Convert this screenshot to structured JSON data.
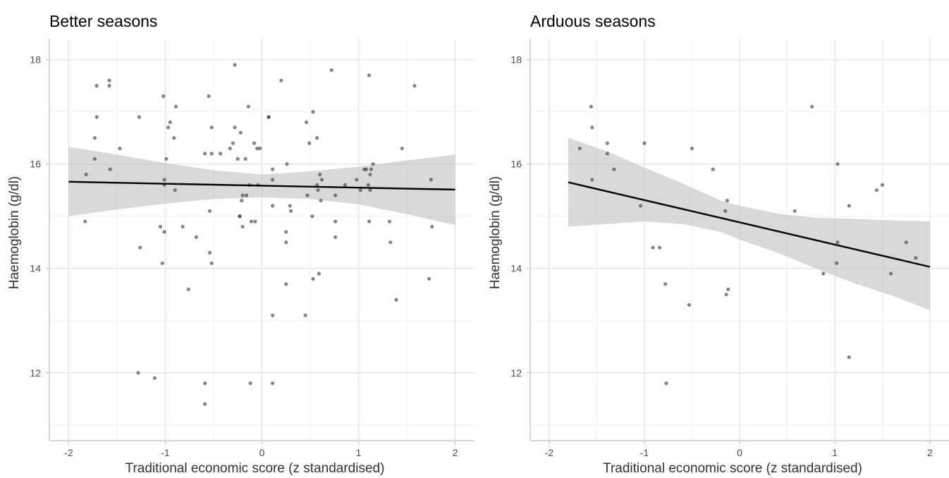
{
  "chart_data": [
    {
      "type": "scatter",
      "title": "Better seasons",
      "xlabel": "Traditional economic score (z standardised)",
      "ylabel": "Haemoglobin (g/dl)",
      "xlim": [
        -2.2,
        2.2
      ],
      "ylim": [
        10.7,
        18.4
      ],
      "x_ticks": [
        -2,
        -1,
        0,
        1,
        2
      ],
      "y_ticks": [
        12,
        14,
        16,
        18
      ],
      "grid": true,
      "colors": {
        "points": "#333333",
        "fit_line": "#000000",
        "ribbon": "#bfbfbf"
      },
      "points": [
        [
          -1.83,
          14.9
        ],
        [
          -1.82,
          15.8
        ],
        [
          -1.73,
          16.1
        ],
        [
          -1.73,
          16.5
        ],
        [
          -1.71,
          16.9
        ],
        [
          -1.71,
          17.5
        ],
        [
          -1.58,
          17.6
        ],
        [
          -1.58,
          17.5
        ],
        [
          -1.57,
          15.9
        ],
        [
          -1.47,
          16.3
        ],
        [
          -1.28,
          12.0
        ],
        [
          -1.27,
          16.9
        ],
        [
          -1.26,
          14.4
        ],
        [
          -1.11,
          11.9
        ],
        [
          -1.05,
          14.8
        ],
        [
          -1.03,
          14.1
        ],
        [
          -1.02,
          17.3
        ],
        [
          -1.01,
          15.7
        ],
        [
          -1.01,
          15.6
        ],
        [
          -1.01,
          14.7
        ],
        [
          -0.99,
          16.1
        ],
        [
          -0.97,
          16.7
        ],
        [
          -0.95,
          16.8
        ],
        [
          -0.91,
          16.5
        ],
        [
          -0.9,
          15.5
        ],
        [
          -0.89,
          17.1
        ],
        [
          -0.82,
          14.8
        ],
        [
          -0.76,
          13.6
        ],
        [
          -0.68,
          14.6
        ],
        [
          -0.59,
          11.8
        ],
        [
          -0.59,
          11.4
        ],
        [
          -0.59,
          16.2
        ],
        [
          -0.55,
          17.3
        ],
        [
          -0.54,
          15.1
        ],
        [
          -0.54,
          14.3
        ],
        [
          -0.52,
          14.1
        ],
        [
          -0.52,
          16.7
        ],
        [
          -0.52,
          16.2
        ],
        [
          -0.43,
          16.2
        ],
        [
          -0.33,
          16.3
        ],
        [
          -0.3,
          16.4
        ],
        [
          -0.28,
          17.9
        ],
        [
          -0.28,
          16.7
        ],
        [
          -0.25,
          16.1
        ],
        [
          -0.23,
          15.0
        ],
        [
          -0.23,
          15.0
        ],
        [
          -0.22,
          16.6
        ],
        [
          -0.21,
          15.3
        ],
        [
          -0.2,
          15.4
        ],
        [
          -0.2,
          14.8
        ],
        [
          -0.17,
          16.1
        ],
        [
          -0.16,
          15.4
        ],
        [
          -0.14,
          17.1
        ],
        [
          -0.13,
          15.6
        ],
        [
          -0.12,
          11.8
        ],
        [
          -0.11,
          14.9
        ],
        [
          -0.08,
          16.4
        ],
        [
          -0.07,
          14.9
        ],
        [
          -0.05,
          16.3
        ],
        [
          -0.04,
          15.6
        ],
        [
          -0.02,
          16.3
        ],
        [
          0.07,
          16.9
        ],
        [
          0.07,
          16.9
        ],
        [
          0.11,
          15.9
        ],
        [
          0.11,
          15.7
        ],
        [
          0.11,
          15.2
        ],
        [
          0.11,
          13.1
        ],
        [
          0.11,
          11.8
        ],
        [
          0.2,
          17.6
        ],
        [
          0.25,
          14.7
        ],
        [
          0.25,
          14.5
        ],
        [
          0.25,
          13.7
        ],
        [
          0.26,
          16.0
        ],
        [
          0.29,
          15.2
        ],
        [
          0.3,
          15.1
        ],
        [
          0.45,
          13.1
        ],
        [
          0.46,
          16.8
        ],
        [
          0.47,
          15.4
        ],
        [
          0.49,
          16.4
        ],
        [
          0.52,
          15.0
        ],
        [
          0.53,
          13.8
        ],
        [
          0.53,
          17.0
        ],
        [
          0.57,
          15.6
        ],
        [
          0.57,
          16.5
        ],
        [
          0.58,
          15.5
        ],
        [
          0.59,
          13.9
        ],
        [
          0.6,
          15.8
        ],
        [
          0.61,
          15.3
        ],
        [
          0.62,
          15.7
        ],
        [
          0.72,
          17.8
        ],
        [
          0.76,
          15.4
        ],
        [
          0.76,
          14.9
        ],
        [
          0.76,
          14.6
        ],
        [
          0.86,
          15.6
        ],
        [
          0.98,
          15.7
        ],
        [
          1.02,
          15.5
        ],
        [
          1.06,
          15.9
        ],
        [
          1.08,
          15.9
        ],
        [
          1.1,
          15.6
        ],
        [
          1.11,
          17.7
        ],
        [
          1.11,
          14.9
        ],
        [
          1.12,
          15.8
        ],
        [
          1.12,
          15.5
        ],
        [
          1.13,
          15.9
        ],
        [
          1.15,
          16.0
        ],
        [
          1.32,
          14.9
        ],
        [
          1.33,
          14.5
        ],
        [
          1.39,
          13.4
        ],
        [
          1.45,
          16.3
        ],
        [
          1.58,
          17.5
        ],
        [
          1.73,
          13.8
        ],
        [
          1.75,
          15.7
        ],
        [
          1.76,
          14.8
        ]
      ],
      "fit": {
        "x": [
          -2,
          2
        ],
        "y": [
          15.66,
          15.51
        ]
      },
      "ci_band": {
        "x": [
          -2.0,
          -1.5,
          -1.0,
          -0.5,
          0.0,
          0.5,
          1.0,
          1.5,
          2.0
        ],
        "lower": [
          15.0,
          15.13,
          15.24,
          15.33,
          15.36,
          15.33,
          15.23,
          15.04,
          14.83
        ],
        "upper": [
          16.33,
          16.18,
          16.02,
          15.88,
          15.8,
          15.86,
          15.95,
          16.07,
          16.18
        ]
      }
    },
    {
      "type": "scatter",
      "title": "Arduous seasons",
      "xlabel": "Traditional economic score (z standardised)",
      "ylabel": "Haemoglobin (g/dl)",
      "xlim": [
        -2.2,
        2.2
      ],
      "ylim": [
        10.7,
        18.4
      ],
      "x_ticks": [
        -2,
        -1,
        0,
        1,
        2
      ],
      "y_ticks": [
        12,
        14,
        16,
        18
      ],
      "grid": true,
      "colors": {
        "points": "#333333",
        "fit_line": "#000000",
        "ribbon": "#bfbfbf"
      },
      "points": [
        [
          -1.68,
          16.3
        ],
        [
          -1.56,
          17.1
        ],
        [
          -1.55,
          16.7
        ],
        [
          -1.55,
          15.7
        ],
        [
          -1.39,
          16.4
        ],
        [
          -1.39,
          16.2
        ],
        [
          -1.32,
          15.9
        ],
        [
          -1.04,
          15.2
        ],
        [
          -1.0,
          16.4
        ],
        [
          -0.91,
          14.4
        ],
        [
          -0.84,
          14.4
        ],
        [
          -0.78,
          13.7
        ],
        [
          -0.77,
          11.8
        ],
        [
          -0.53,
          13.3
        ],
        [
          -0.5,
          16.3
        ],
        [
          -0.28,
          15.9
        ],
        [
          -0.15,
          15.1
        ],
        [
          -0.14,
          13.5
        ],
        [
          -0.13,
          15.3
        ],
        [
          -0.12,
          13.6
        ],
        [
          0.58,
          15.1
        ],
        [
          0.76,
          17.1
        ],
        [
          0.88,
          13.9
        ],
        [
          1.02,
          14.1
        ],
        [
          1.03,
          14.5
        ],
        [
          1.03,
          16.0
        ],
        [
          1.15,
          15.2
        ],
        [
          1.15,
          12.3
        ],
        [
          1.44,
          15.5
        ],
        [
          1.5,
          15.6
        ],
        [
          1.59,
          13.9
        ],
        [
          1.75,
          14.5
        ],
        [
          1.85,
          14.2
        ]
      ],
      "fit": {
        "x": [
          -1.8,
          2
        ],
        "y": [
          15.65,
          14.03
        ]
      },
      "ci_band": {
        "x": [
          -1.8,
          -1.4,
          -1.0,
          -0.6,
          -0.2,
          0.0,
          0.4,
          0.8,
          1.2,
          1.6,
          2.0
        ],
        "lower": [
          14.8,
          14.85,
          14.9,
          14.85,
          14.7,
          14.55,
          14.3,
          14.0,
          13.72,
          13.48,
          13.2
        ],
        "upper": [
          16.5,
          16.25,
          15.93,
          15.63,
          15.3,
          15.2,
          15.05,
          14.97,
          14.95,
          14.92,
          14.9
        ]
      }
    }
  ]
}
